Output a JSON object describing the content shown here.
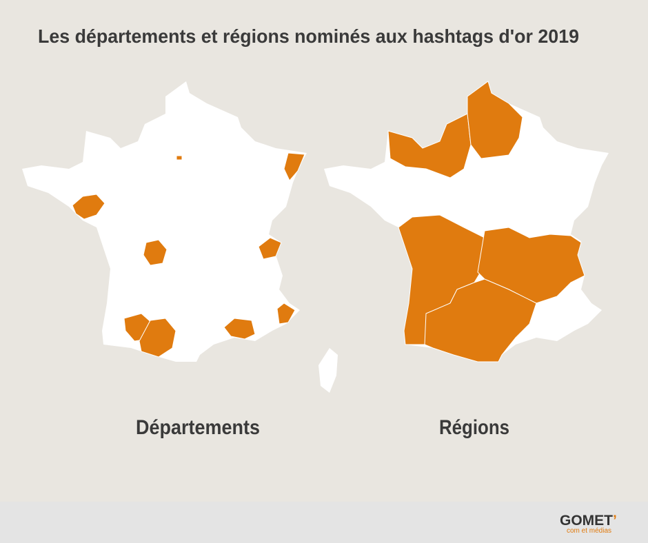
{
  "title": "Les départements et régions nominés aux hashtags d'or 2019",
  "maps": [
    {
      "label": "Départements"
    },
    {
      "label": "Régions"
    }
  ],
  "logo": {
    "name": "GOMET",
    "mark": "’",
    "tagline": "com et médias"
  }
}
